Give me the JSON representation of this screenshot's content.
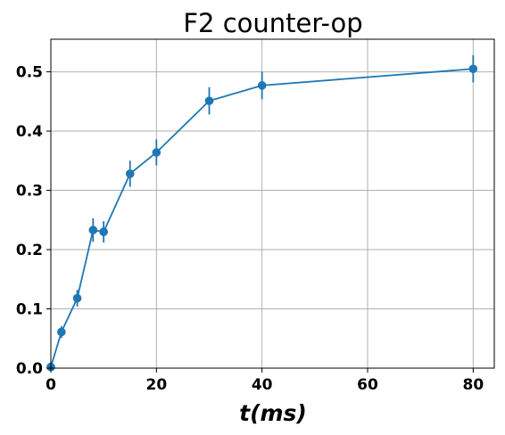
{
  "chart_data": {
    "type": "line",
    "title": "F2 counter-op",
    "xlabel": "t(ms)",
    "ylabel": "",
    "xlim": [
      0,
      84
    ],
    "ylim": [
      0,
      0.555
    ],
    "xticks": [
      0,
      20,
      40,
      60,
      80
    ],
    "yticks": [
      0.0,
      0.1,
      0.2,
      0.3,
      0.4,
      0.5
    ],
    "xtick_labels": [
      "0",
      "20",
      "40",
      "60",
      "80"
    ],
    "ytick_labels": [
      "0.0",
      "0.1",
      "0.2",
      "0.3",
      "0.4",
      "0.5"
    ],
    "grid": true,
    "color": "#1f77b4",
    "series": [
      {
        "x": [
          0,
          2,
          5,
          8,
          10,
          15,
          20,
          30,
          40,
          80
        ],
        "y": [
          0.002,
          0.061,
          0.118,
          0.233,
          0.23,
          0.328,
          0.364,
          0.451,
          0.477,
          0.505
        ],
        "yerr": [
          0.006,
          0.01,
          0.014,
          0.02,
          0.018,
          0.022,
          0.022,
          0.023,
          0.023,
          0.023
        ]
      }
    ]
  }
}
